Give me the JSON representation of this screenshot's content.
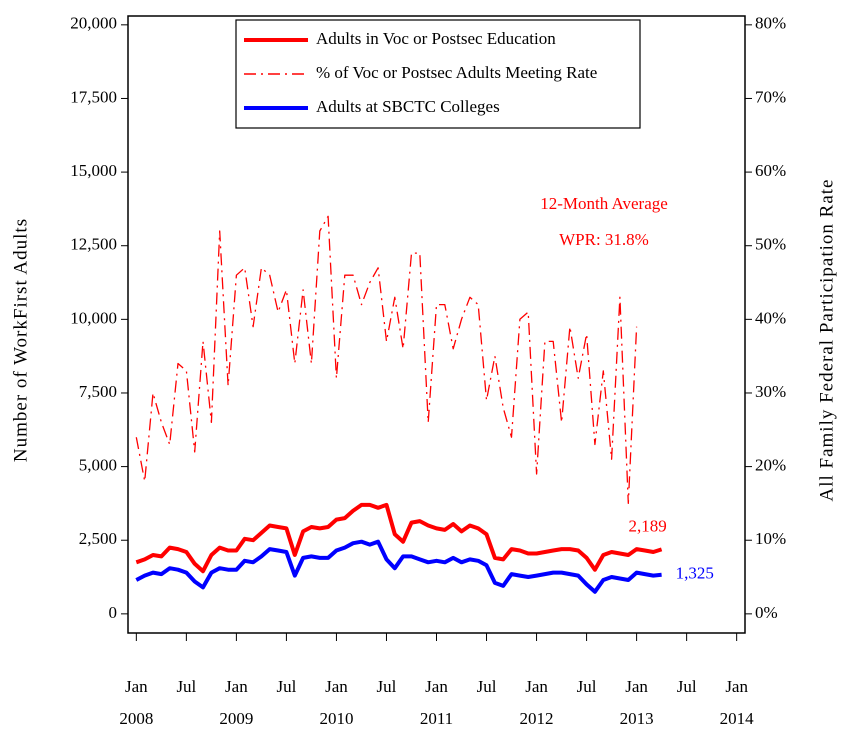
{
  "chart_data": {
    "type": "line",
    "y_label": "Number of WorkFirst Adults",
    "y2_label": "All Family Federal Participation Rate",
    "annotation": [
      "12-Month Average",
      "WPR: 31.8%"
    ],
    "x": [
      "2008-01",
      "2008-02",
      "2008-03",
      "2008-04",
      "2008-05",
      "2008-06",
      "2008-07",
      "2008-08",
      "2008-09",
      "2008-10",
      "2008-11",
      "2008-12",
      "2009-01",
      "2009-02",
      "2009-03",
      "2009-04",
      "2009-05",
      "2009-06",
      "2009-07",
      "2009-08",
      "2009-09",
      "2009-10",
      "2009-11",
      "2009-12",
      "2010-01",
      "2010-02",
      "2010-03",
      "2010-04",
      "2010-05",
      "2010-06",
      "2010-07",
      "2010-08",
      "2010-09",
      "2010-10",
      "2010-11",
      "2010-12",
      "2011-01",
      "2011-02",
      "2011-03",
      "2011-04",
      "2011-05",
      "2011-06",
      "2011-07",
      "2011-08",
      "2011-09",
      "2011-10",
      "2011-11",
      "2011-12",
      "2012-01",
      "2012-02",
      "2012-03",
      "2012-04",
      "2012-05",
      "2012-06",
      "2012-07",
      "2012-08",
      "2012-09",
      "2012-10",
      "2012-11",
      "2012-12",
      "2013-01",
      "2013-02",
      "2013-03",
      "2013-04"
    ],
    "xlim": [
      "2007-12",
      "2014-02"
    ],
    "xticks": [
      {
        "value": "2008-01",
        "label": "Jan"
      },
      {
        "value": "2008-07",
        "label": "Jul"
      },
      {
        "value": "2009-01",
        "label": "Jan"
      },
      {
        "value": "2009-07",
        "label": "Jul"
      },
      {
        "value": "2010-01",
        "label": "Jan"
      },
      {
        "value": "2010-07",
        "label": "Jul"
      },
      {
        "value": "2011-01",
        "label": "Jan"
      },
      {
        "value": "2011-07",
        "label": "Jul"
      },
      {
        "value": "2012-01",
        "label": "Jan"
      },
      {
        "value": "2012-07",
        "label": "Jul"
      },
      {
        "value": "2013-01",
        "label": "Jan"
      },
      {
        "value": "2013-07",
        "label": "Jul"
      },
      {
        "value": "2014-01",
        "label": "Jan"
      }
    ],
    "xtick_years": [
      {
        "value": "2008-01",
        "label": "2008"
      },
      {
        "value": "2009-01",
        "label": "2009"
      },
      {
        "value": "2010-01",
        "label": "2010"
      },
      {
        "value": "2011-01",
        "label": "2011"
      },
      {
        "value": "2012-01",
        "label": "2012"
      },
      {
        "value": "2013-01",
        "label": "2013"
      },
      {
        "value": "2014-01",
        "label": "2014"
      }
    ],
    "ylim": [
      -650,
      20300
    ],
    "yticks": [
      0,
      {
        "value": 2500,
        "label": "2,500"
      },
      {
        "value": 5000,
        "label": "5,000"
      },
      {
        "value": 7500,
        "label": "7,500"
      },
      {
        "value": 10000,
        "label": "10,000"
      },
      {
        "value": 12500,
        "label": "12,500"
      },
      {
        "value": 15000,
        "label": "15,000"
      },
      {
        "value": 17500,
        "label": "17,500"
      },
      {
        "value": 20000,
        "label": "20,000"
      }
    ],
    "y2lim": [
      -2.6,
      81.2
    ],
    "y2ticks": [
      {
        "value": 0,
        "label": "0%"
      },
      {
        "value": 10,
        "label": "10%"
      },
      {
        "value": 20,
        "label": "20%"
      },
      {
        "value": 30,
        "label": "30%"
      },
      {
        "value": 40,
        "label": "40%"
      },
      {
        "value": 50,
        "label": "50%"
      },
      {
        "value": 60,
        "label": "60%"
      },
      {
        "value": 70,
        "label": "70%"
      },
      {
        "value": 80,
        "label": "80%"
      }
    ],
    "series": [
      {
        "name": "Adults in Voc or Postsec Education",
        "color": "#ff0000",
        "style": "solid",
        "values": [
          1750,
          1850,
          2000,
          1950,
          2250,
          2200,
          2100,
          1700,
          1450,
          2000,
          2250,
          2150,
          2150,
          2550,
          2500,
          2750,
          3000,
          2950,
          2900,
          2000,
          2800,
          2950,
          2900,
          2950,
          3200,
          3250,
          3500,
          3700,
          3700,
          3600,
          3700,
          2700,
          2450,
          3100,
          3150,
          3000,
          2900,
          2850,
          3050,
          2800,
          3000,
          2900,
          2700,
          1900,
          1850,
          2200,
          2150,
          2050,
          2050,
          2100,
          2150,
          2200,
          2200,
          2150,
          1900,
          1500,
          2000,
          2100,
          2050,
          2000,
          2200,
          2150,
          2100,
          2189
        ],
        "value_labels": [
          null,
          null,
          null,
          null,
          null,
          null,
          null,
          null,
          null,
          null,
          null,
          null,
          null,
          null,
          null,
          null,
          null,
          null,
          null,
          null,
          null,
          null,
          null,
          null,
          null,
          null,
          null,
          null,
          null,
          null,
          null,
          null,
          null,
          null,
          null,
          null,
          null,
          null,
          null,
          null,
          null,
          null,
          null,
          null,
          null,
          null,
          null,
          null,
          null,
          null,
          null,
          null,
          null,
          null,
          null,
          null,
          null,
          null,
          null,
          null,
          null,
          null,
          null,
          "2,189"
        ]
      },
      {
        "name": "% of Voc or Postsec Adults Meeting Rate",
        "color": "#ff0000",
        "style": "dashdot",
        "axis": "y2",
        "values": [
          24,
          18,
          30,
          26,
          23,
          34,
          33,
          22,
          37,
          26,
          52,
          31,
          46,
          47,
          39,
          47,
          46,
          41,
          44,
          34,
          44,
          34,
          52,
          54,
          32,
          46,
          46,
          42,
          45,
          47,
          37,
          43,
          36,
          49,
          49,
          26,
          42,
          42,
          36,
          40,
          43,
          42,
          29,
          35,
          28,
          24,
          40,
          41,
          19,
          37,
          37,
          26,
          39,
          32,
          38,
          23,
          33,
          21,
          43,
          15,
          39,
          null,
          null,
          null
        ]
      },
      {
        "name": "Adults at SBCTC Colleges",
        "color": "#0000ff",
        "style": "solid",
        "values": [
          1150,
          1300,
          1400,
          1350,
          1550,
          1500,
          1400,
          1100,
          900,
          1400,
          1550,
          1500,
          1500,
          1800,
          1750,
          1950,
          2200,
          2150,
          2100,
          1300,
          1900,
          1950,
          1900,
          1900,
          2150,
          2250,
          2400,
          2450,
          2350,
          2450,
          1850,
          1550,
          1950,
          1950,
          1850,
          1750,
          1800,
          1750,
          1900,
          1750,
          1850,
          1800,
          1650,
          1050,
          950,
          1350,
          1300,
          1250,
          1300,
          1350,
          1400,
          1400,
          1350,
          1300,
          1000,
          750,
          1150,
          1250,
          1200,
          1150,
          1400,
          1350,
          1300,
          1325
        ],
        "value_labels": [
          null,
          null,
          null,
          null,
          null,
          null,
          null,
          null,
          null,
          null,
          null,
          null,
          null,
          null,
          null,
          null,
          null,
          null,
          null,
          null,
          null,
          null,
          null,
          null,
          null,
          null,
          null,
          null,
          null,
          null,
          null,
          null,
          null,
          null,
          null,
          null,
          null,
          null,
          null,
          null,
          null,
          null,
          null,
          null,
          null,
          null,
          null,
          null,
          null,
          null,
          null,
          null,
          null,
          null,
          null,
          null,
          null,
          null,
          null,
          null,
          null,
          null,
          null,
          "1,325"
        ]
      }
    ],
    "legend": "top-center"
  }
}
